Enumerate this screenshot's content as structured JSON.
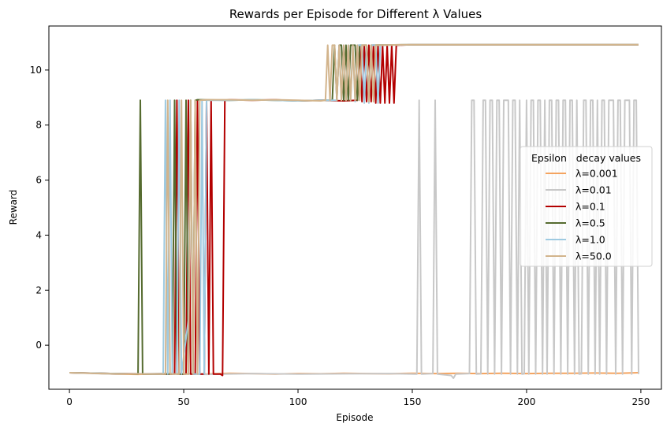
{
  "chart_data": {
    "type": "line",
    "title": "Rewards per Episode for Different λ Values",
    "xlabel": "Episode",
    "ylabel": "Reward",
    "xlim": [
      -9,
      259
    ],
    "ylim": [
      -1.6,
      11.6
    ],
    "xticks": [
      0,
      50,
      100,
      150,
      200,
      250
    ],
    "yticks": [
      0,
      2,
      4,
      6,
      8,
      10
    ],
    "grid": false,
    "legend": {
      "title": "Epsilon   decay values",
      "placement": "center-right"
    },
    "series": [
      {
        "name": "λ=0.001",
        "color": "#f4a460",
        "points": [
          [
            0,
            -1.0
          ],
          [
            10,
            -1.02
          ],
          [
            20,
            -1.05
          ],
          [
            30,
            -1.06
          ],
          [
            40,
            -1.03
          ],
          [
            50,
            -1.04
          ],
          [
            60,
            -1.05
          ],
          [
            70,
            -1.02
          ],
          [
            80,
            -1.03
          ],
          [
            90,
            -1.05
          ],
          [
            100,
            -1.03
          ],
          [
            110,
            -1.04
          ],
          [
            120,
            -1.02
          ],
          [
            130,
            -1.03
          ],
          [
            140,
            -1.04
          ],
          [
            150,
            -1.02
          ],
          [
            160,
            -1.03
          ],
          [
            170,
            -1.02
          ],
          [
            180,
            -1.03
          ],
          [
            190,
            -1.02
          ],
          [
            200,
            -1.03
          ],
          [
            210,
            -1.02
          ],
          [
            220,
            -1.02
          ],
          [
            230,
            -1.01
          ],
          [
            240,
            -1.02
          ],
          [
            249,
            -1.0
          ]
        ]
      },
      {
        "name": "λ=0.01",
        "color": "#c8c8c8",
        "points": [
          [
            0,
            -1.0
          ],
          [
            20,
            -1.05
          ],
          [
            40,
            -1.03
          ],
          [
            60,
            -1.06
          ],
          [
            80,
            -1.03
          ],
          [
            100,
            -1.05
          ],
          [
            120,
            -1.04
          ],
          [
            140,
            -1.03
          ],
          [
            151,
            -1.05
          ],
          [
            152,
            -1.05
          ],
          [
            153,
            8.9
          ],
          [
            154,
            -1.05
          ],
          [
            159,
            -1.03
          ],
          [
            160,
            8.9
          ],
          [
            161,
            -1.05
          ],
          [
            167,
            -1.1
          ],
          [
            168,
            -1.2
          ],
          [
            169,
            -1.05
          ],
          [
            175,
            -1.03
          ],
          [
            176,
            8.9
          ],
          [
            177,
            8.9
          ],
          [
            178,
            -1.05
          ],
          [
            180,
            -1.04
          ],
          [
            181,
            8.9
          ],
          [
            182,
            8.9
          ],
          [
            183,
            -1.05
          ],
          [
            184,
            8.9
          ],
          [
            185,
            8.9
          ],
          [
            186,
            -1.05
          ],
          [
            187,
            8.9
          ],
          [
            188,
            8.9
          ],
          [
            189,
            -1.05
          ],
          [
            190,
            8.9
          ],
          [
            191,
            8.9
          ],
          [
            192,
            8.9
          ],
          [
            193,
            -1.05
          ],
          [
            194,
            8.9
          ],
          [
            195,
            8.9
          ],
          [
            196,
            -1.05
          ],
          [
            197,
            8.9
          ],
          [
            198,
            -1.05
          ],
          [
            199,
            -1.04
          ],
          [
            200,
            8.9
          ],
          [
            201,
            -1.05
          ],
          [
            202,
            8.9
          ],
          [
            203,
            8.9
          ],
          [
            204,
            -1.05
          ],
          [
            205,
            8.9
          ],
          [
            206,
            8.9
          ],
          [
            207,
            -1.05
          ],
          [
            208,
            8.9
          ],
          [
            209,
            -1.05
          ],
          [
            210,
            8.9
          ],
          [
            211,
            8.9
          ],
          [
            212,
            -1.05
          ],
          [
            213,
            8.9
          ],
          [
            214,
            8.9
          ],
          [
            215,
            -1.05
          ],
          [
            216,
            8.9
          ],
          [
            217,
            8.9
          ],
          [
            218,
            -1.05
          ],
          [
            219,
            8.9
          ],
          [
            220,
            8.9
          ],
          [
            221,
            -1.05
          ],
          [
            222,
            8.9
          ],
          [
            223,
            -1.05
          ],
          [
            224,
            -1.04
          ],
          [
            225,
            8.9
          ],
          [
            226,
            8.9
          ],
          [
            227,
            -1.05
          ],
          [
            228,
            8.9
          ],
          [
            229,
            8.9
          ],
          [
            230,
            -1.05
          ],
          [
            231,
            8.9
          ],
          [
            232,
            -1.05
          ],
          [
            233,
            8.9
          ],
          [
            234,
            8.9
          ],
          [
            235,
            -1.05
          ],
          [
            236,
            8.9
          ],
          [
            237,
            8.9
          ],
          [
            238,
            8.9
          ],
          [
            239,
            -1.05
          ],
          [
            240,
            8.9
          ],
          [
            241,
            8.9
          ],
          [
            242,
            -1.05
          ],
          [
            243,
            8.9
          ],
          [
            244,
            8.9
          ],
          [
            245,
            8.9
          ],
          [
            246,
            -1.05
          ],
          [
            247,
            8.9
          ],
          [
            248,
            8.9
          ],
          [
            249,
            -1.05
          ]
        ]
      },
      {
        "name": "λ=0.1",
        "color": "#b30000",
        "points": [
          [
            0,
            -1.0
          ],
          [
            20,
            -1.03
          ],
          [
            40,
            -1.05
          ],
          [
            46,
            -1.05
          ],
          [
            47,
            8.9
          ],
          [
            48,
            -1.05
          ],
          [
            51,
            -1.05
          ],
          [
            52,
            8.9
          ],
          [
            53,
            -1.05
          ],
          [
            55,
            -1.05
          ],
          [
            56,
            8.9
          ],
          [
            57,
            -1.05
          ],
          [
            59,
            -1.05
          ],
          [
            60,
            8.9
          ],
          [
            61,
            -1.05
          ],
          [
            62,
            8.9
          ],
          [
            63,
            -1.05
          ],
          [
            66,
            -1.05
          ],
          [
            67,
            -1.1
          ],
          [
            68,
            8.9
          ],
          [
            70,
            8.92
          ],
          [
            80,
            8.9
          ],
          [
            90,
            8.92
          ],
          [
            100,
            8.88
          ],
          [
            110,
            8.9
          ],
          [
            120,
            8.88
          ],
          [
            126,
            8.9
          ],
          [
            127,
            10.9
          ],
          [
            128,
            8.85
          ],
          [
            129,
            10.9
          ],
          [
            130,
            8.85
          ],
          [
            131,
            10.9
          ],
          [
            132,
            8.85
          ],
          [
            133,
            10.9
          ],
          [
            134,
            8.8
          ],
          [
            135,
            10.9
          ],
          [
            136,
            8.8
          ],
          [
            137,
            10.9
          ],
          [
            138,
            8.8
          ],
          [
            139,
            10.9
          ],
          [
            140,
            8.8
          ],
          [
            141,
            10.9
          ],
          [
            142,
            8.8
          ],
          [
            143,
            10.9
          ],
          [
            150,
            10.92
          ],
          [
            200,
            10.92
          ],
          [
            249,
            10.92
          ]
        ]
      },
      {
        "name": "λ=0.5",
        "color": "#556b2f",
        "points": [
          [
            0,
            -1.0
          ],
          [
            20,
            -1.03
          ],
          [
            30,
            -1.05
          ],
          [
            31,
            8.9
          ],
          [
            32,
            -1.05
          ],
          [
            45,
            -1.05
          ],
          [
            46,
            8.9
          ],
          [
            47,
            -1.05
          ],
          [
            50,
            -1.05
          ],
          [
            51,
            8.9
          ],
          [
            52,
            -1.05
          ],
          [
            53,
            8.9
          ],
          [
            54,
            -1.05
          ],
          [
            55,
            8.9
          ],
          [
            56,
            8.92
          ],
          [
            70,
            8.9
          ],
          [
            80,
            8.92
          ],
          [
            90,
            8.9
          ],
          [
            100,
            8.88
          ],
          [
            110,
            8.9
          ],
          [
            115,
            8.9
          ],
          [
            116,
            10.9
          ],
          [
            117,
            8.9
          ],
          [
            118,
            10.9
          ],
          [
            119,
            10.9
          ],
          [
            120,
            8.9
          ],
          [
            121,
            10.9
          ],
          [
            122,
            8.9
          ],
          [
            123,
            10.9
          ],
          [
            125,
            10.9
          ],
          [
            126,
            8.9
          ],
          [
            127,
            10.9
          ],
          [
            130,
            10.9
          ],
          [
            131,
            8.9
          ],
          [
            132,
            10.9
          ],
          [
            150,
            10.92
          ],
          [
            200,
            10.92
          ],
          [
            249,
            10.92
          ]
        ]
      },
      {
        "name": "λ=1.0",
        "color": "#9ecae1",
        "points": [
          [
            0,
            -1.0
          ],
          [
            20,
            -1.03
          ],
          [
            40,
            -1.05
          ],
          [
            41,
            -1.05
          ],
          [
            42,
            8.9
          ],
          [
            43,
            -1.05
          ],
          [
            44,
            8.9
          ],
          [
            45,
            -1.05
          ],
          [
            47,
            -1.05
          ],
          [
            48,
            8.9
          ],
          [
            49,
            -1.05
          ],
          [
            52,
            0.9
          ],
          [
            53,
            8.9
          ],
          [
            54,
            -1.05
          ],
          [
            57,
            -1.05
          ],
          [
            58,
            8.9
          ],
          [
            59,
            -1.05
          ],
          [
            60,
            8.9
          ],
          [
            70,
            8.9
          ],
          [
            80,
            8.92
          ],
          [
            90,
            8.9
          ],
          [
            100,
            8.88
          ],
          [
            110,
            8.9
          ],
          [
            117,
            8.9
          ],
          [
            118,
            10.9
          ],
          [
            119,
            8.9
          ],
          [
            120,
            10.9
          ],
          [
            121,
            8.9
          ],
          [
            122,
            10.9
          ],
          [
            123,
            8.9
          ],
          [
            124,
            10.9
          ],
          [
            125,
            8.85
          ],
          [
            126,
            10.9
          ],
          [
            128,
            10.9
          ],
          [
            129,
            8.8
          ],
          [
            130,
            10.9
          ],
          [
            131,
            8.8
          ],
          [
            132,
            10.9
          ],
          [
            134,
            10.9
          ],
          [
            135,
            8.8
          ],
          [
            136,
            10.9
          ],
          [
            150,
            10.92
          ],
          [
            200,
            10.92
          ],
          [
            249,
            10.92
          ]
        ]
      },
      {
        "name": "λ=50.0",
        "color": "#d2b48c",
        "points": [
          [
            0,
            -1.0
          ],
          [
            20,
            -1.04
          ],
          [
            40,
            -1.05
          ],
          [
            42,
            -1.05
          ],
          [
            43,
            8.9
          ],
          [
            44,
            -1.05
          ],
          [
            48,
            -1.05
          ],
          [
            49,
            8.9
          ],
          [
            50,
            -1.05
          ],
          [
            52,
            -1.05
          ],
          [
            53,
            8.9
          ],
          [
            54,
            -1.05
          ],
          [
            55,
            8.9
          ],
          [
            56,
            -1.05
          ],
          [
            57,
            8.9
          ],
          [
            60,
            8.92
          ],
          [
            70,
            8.92
          ],
          [
            80,
            8.9
          ],
          [
            90,
            8.92
          ],
          [
            100,
            8.9
          ],
          [
            110,
            8.88
          ],
          [
            112,
            8.9
          ],
          [
            113,
            10.9
          ],
          [
            114,
            8.9
          ],
          [
            115,
            10.9
          ],
          [
            116,
            10.9
          ],
          [
            117,
            8.9
          ],
          [
            118,
            10.9
          ],
          [
            119,
            8.9
          ],
          [
            120,
            10.9
          ],
          [
            121,
            8.9
          ],
          [
            122,
            10.9
          ],
          [
            123,
            8.9
          ],
          [
            124,
            10.9
          ],
          [
            125,
            8.9
          ],
          [
            126,
            10.9
          ],
          [
            127,
            8.9
          ],
          [
            128,
            10.9
          ],
          [
            130,
            10.9
          ],
          [
            131,
            8.85
          ],
          [
            132,
            10.9
          ],
          [
            133,
            8.85
          ],
          [
            134,
            10.9
          ],
          [
            150,
            10.92
          ],
          [
            200,
            10.92
          ],
          [
            249,
            10.92
          ]
        ]
      }
    ]
  }
}
